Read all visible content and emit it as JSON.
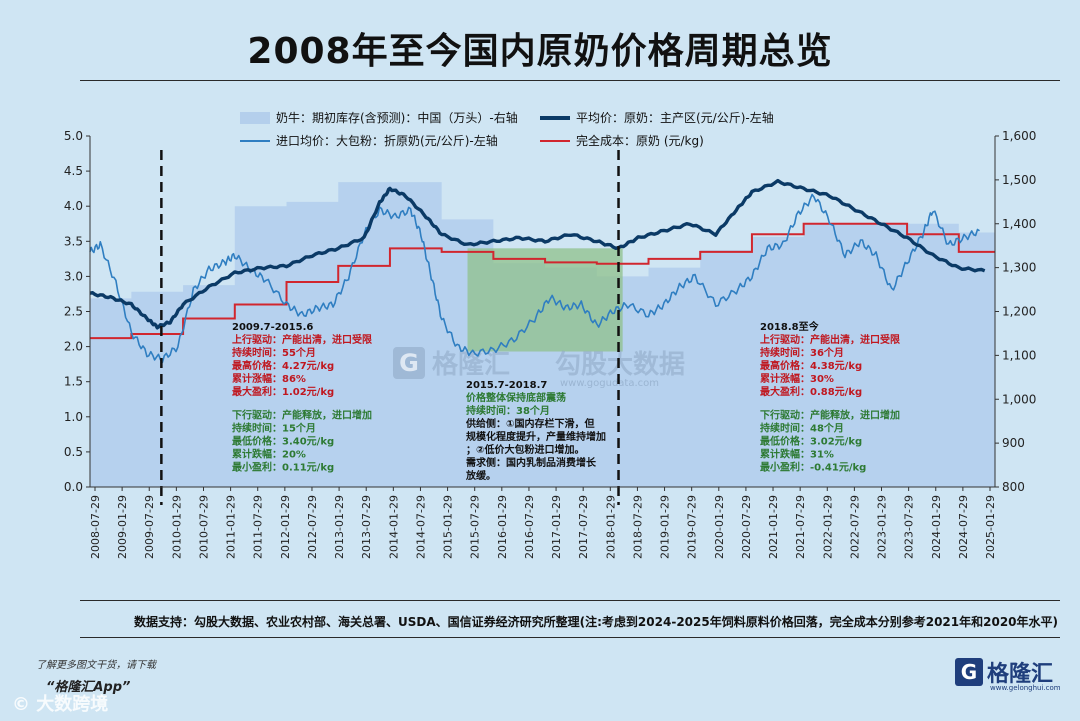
{
  "page": {
    "title": "2008年至今国内原奶价格周期总览",
    "source_note": "数据支持：勾股大数据、农业农村部、海关总署、USDA、国信证券经济研究所整理(注:考虑到2024-2025年饲料原料价格回落，完全成本分别参考2021年和2020年水平)",
    "footer_line1": "了解更多图文干货，请下载",
    "footer_line2": "“格隆汇App”",
    "footer_watermark": "© 大数跨境",
    "brand_logo": "G",
    "brand_name": "格隆汇",
    "brand_url": "www.gelonghui.com"
  },
  "chart_data": {
    "type": "line",
    "legend": {
      "position": "top",
      "items": [
        {
          "label": "奶牛：期初库存(含预测)：中国（万头）-右轴",
          "kind": "area",
          "color": "#b4cfec"
        },
        {
          "label": "平均价：原奶：主产区(元/公斤)-左轴",
          "kind": "line",
          "color": "#0b3a66"
        },
        {
          "label": "进口均价：大包粉：折原奶(元/公斤)-左轴",
          "kind": "line",
          "color": "#2f7ec1"
        },
        {
          "label": "完全成本：原奶 (元/kg)",
          "kind": "line",
          "color": "#d1262e"
        }
      ]
    },
    "y_left": {
      "min": 0,
      "max": 5,
      "ticks": [
        "0.0",
        "0.5",
        "1.0",
        "1.5",
        "2.0",
        "2.5",
        "3.0",
        "3.5",
        "4.0",
        "4.5",
        "5.0"
      ]
    },
    "y_right": {
      "min": 800,
      "max": 1600,
      "ticks": [
        "800",
        "900",
        "1,000",
        "1,100",
        "1,200",
        "1,300",
        "1,400",
        "1,500",
        "1,600"
      ]
    },
    "x_ticks": [
      "2008-07-29",
      "2009-01-29",
      "2009-07-29",
      "2010-01-29",
      "2010-07-29",
      "2011-01-29",
      "2011-07-29",
      "2012-01-29",
      "2012-07-29",
      "2013-01-29",
      "2013-07-29",
      "2014-01-29",
      "2014-07-29",
      "2015-01-29",
      "2015-07-29",
      "2016-01-29",
      "2016-07-29",
      "2017-01-29",
      "2017-07-29",
      "2018-01-29",
      "2018-07-29",
      "2019-01-29",
      "2019-07-29",
      "2020-01-29",
      "2020-07-29",
      "2021-01-29",
      "2021-07-29",
      "2022-01-29",
      "2022-07-29",
      "2023-01-29",
      "2023-07-29",
      "2024-01-29",
      "2024-07-29",
      "2025-01-29"
    ],
    "x_range": [
      2008.2,
      2025.7
    ],
    "dashed_lines": [
      2009.58,
      2018.42
    ],
    "highlight_range": [
      2015.5,
      2018.5
    ],
    "inventory_series": {
      "name": "奶牛：期初库存(含预测)：中国（万头）",
      "axis": "right",
      "segments": [
        [
          2008.2,
          2009.0,
          1230
        ],
        [
          2009.0,
          2010.0,
          1245
        ],
        [
          2010.0,
          2011.0,
          1260
        ],
        [
          2011.0,
          2012.0,
          1440
        ],
        [
          2012.0,
          2013.0,
          1450
        ],
        [
          2013.0,
          2014.0,
          1495
        ],
        [
          2014.0,
          2015.0,
          1495
        ],
        [
          2015.0,
          2016.0,
          1410
        ],
        [
          2016.0,
          2017.0,
          1310
        ],
        [
          2017.0,
          2018.0,
          1300
        ],
        [
          2018.0,
          2019.0,
          1280
        ],
        [
          2019.0,
          2020.0,
          1300
        ],
        [
          2020.0,
          2021.0,
          1340
        ],
        [
          2021.0,
          2022.0,
          1370
        ],
        [
          2022.0,
          2023.0,
          1400
        ],
        [
          2023.0,
          2024.0,
          1400
        ],
        [
          2024.0,
          2025.0,
          1400
        ],
        [
          2025.0,
          2025.7,
          1380
        ]
      ]
    },
    "avg_price_series": {
      "name": "平均价：原奶：主产区(元/公斤)",
      "axis": "left",
      "points": [
        [
          2008.2,
          2.76
        ],
        [
          2008.6,
          2.7
        ],
        [
          2009.0,
          2.6
        ],
        [
          2009.3,
          2.4
        ],
        [
          2009.5,
          2.28
        ],
        [
          2009.75,
          2.35
        ],
        [
          2010.0,
          2.6
        ],
        [
          2010.5,
          2.85
        ],
        [
          2011.0,
          3.05
        ],
        [
          2011.5,
          3.12
        ],
        [
          2012.0,
          3.15
        ],
        [
          2012.5,
          3.3
        ],
        [
          2013.0,
          3.4
        ],
        [
          2013.5,
          3.55
        ],
        [
          2013.8,
          4.05
        ],
        [
          2014.0,
          4.25
        ],
        [
          2014.3,
          4.15
        ],
        [
          2014.7,
          3.85
        ],
        [
          2015.0,
          3.6
        ],
        [
          2015.5,
          3.45
        ],
        [
          2016.0,
          3.5
        ],
        [
          2016.5,
          3.55
        ],
        [
          2017.0,
          3.5
        ],
        [
          2017.5,
          3.6
        ],
        [
          2018.0,
          3.5
        ],
        [
          2018.42,
          3.4
        ],
        [
          2018.8,
          3.55
        ],
        [
          2019.3,
          3.65
        ],
        [
          2019.8,
          3.75
        ],
        [
          2020.3,
          3.6
        ],
        [
          2020.7,
          3.95
        ],
        [
          2021.0,
          4.2
        ],
        [
          2021.5,
          4.35
        ],
        [
          2022.0,
          4.25
        ],
        [
          2022.5,
          4.15
        ],
        [
          2023.0,
          3.95
        ],
        [
          2023.5,
          3.75
        ],
        [
          2024.0,
          3.55
        ],
        [
          2024.5,
          3.3
        ],
        [
          2025.0,
          3.12
        ],
        [
          2025.5,
          3.08
        ]
      ]
    },
    "import_price_series": {
      "name": "进口均价：大包粉：折原奶(元/公斤)",
      "axis": "left",
      "points": [
        [
          2008.2,
          3.35
        ],
        [
          2008.4,
          3.45
        ],
        [
          2008.7,
          2.9
        ],
        [
          2009.0,
          2.2
        ],
        [
          2009.3,
          1.9
        ],
        [
          2009.6,
          1.82
        ],
        [
          2009.9,
          2.0
        ],
        [
          2010.2,
          2.8
        ],
        [
          2010.5,
          3.1
        ],
        [
          2010.8,
          3.2
        ],
        [
          2011.0,
          3.3
        ],
        [
          2011.3,
          3.1
        ],
        [
          2011.6,
          2.95
        ],
        [
          2012.0,
          2.6
        ],
        [
          2012.3,
          2.45
        ],
        [
          2012.6,
          2.55
        ],
        [
          2012.9,
          2.6
        ],
        [
          2013.2,
          3.0
        ],
        [
          2013.5,
          3.6
        ],
        [
          2013.8,
          3.95
        ],
        [
          2014.1,
          3.85
        ],
        [
          2014.4,
          3.95
        ],
        [
          2014.6,
          3.6
        ],
        [
          2014.8,
          3.0
        ],
        [
          2015.0,
          2.4
        ],
        [
          2015.3,
          2.0
        ],
        [
          2015.6,
          1.9
        ],
        [
          2016.0,
          1.95
        ],
        [
          2016.4,
          2.1
        ],
        [
          2016.8,
          2.4
        ],
        [
          2017.1,
          2.7
        ],
        [
          2017.4,
          2.55
        ],
        [
          2017.7,
          2.6
        ],
        [
          2018.0,
          2.3
        ],
        [
          2018.3,
          2.5
        ],
        [
          2018.6,
          2.6
        ],
        [
          2019.0,
          2.45
        ],
        [
          2019.3,
          2.6
        ],
        [
          2019.6,
          2.85
        ],
        [
          2019.9,
          3.0
        ],
        [
          2020.3,
          2.6
        ],
        [
          2020.7,
          2.8
        ],
        [
          2021.0,
          3.0
        ],
        [
          2021.3,
          3.4
        ],
        [
          2021.6,
          3.45
        ],
        [
          2021.9,
          3.9
        ],
        [
          2022.2,
          4.15
        ],
        [
          2022.5,
          3.8
        ],
        [
          2022.8,
          3.3
        ],
        [
          2023.1,
          3.5
        ],
        [
          2023.4,
          3.3
        ],
        [
          2023.7,
          2.8
        ],
        [
          2024.0,
          3.2
        ],
        [
          2024.3,
          3.6
        ],
        [
          2024.5,
          3.95
        ],
        [
          2024.8,
          3.45
        ],
        [
          2025.1,
          3.55
        ],
        [
          2025.4,
          3.65
        ]
      ]
    },
    "cost_series": {
      "name": "完全成本：原奶 (元/kg)",
      "axis": "left",
      "steps": [
        [
          2008.2,
          2.12
        ],
        [
          2009.0,
          2.18
        ],
        [
          2010.0,
          2.4
        ],
        [
          2011.0,
          2.6
        ],
        [
          2012.0,
          2.92
        ],
        [
          2013.0,
          3.15
        ],
        [
          2014.0,
          3.4
        ],
        [
          2015.0,
          3.35
        ],
        [
          2016.0,
          3.25
        ],
        [
          2017.0,
          3.2
        ],
        [
          2018.0,
          3.18
        ],
        [
          2019.0,
          3.25
        ],
        [
          2020.0,
          3.35
        ],
        [
          2021.0,
          3.6
        ],
        [
          2022.0,
          3.75
        ],
        [
          2023.0,
          3.75
        ],
        [
          2024.0,
          3.6
        ],
        [
          2025.0,
          3.35
        ]
      ]
    },
    "annotations": [
      {
        "heading": "2009.7-2015.6",
        "red": [
          "上行驱动：产能出清，进口受限",
          "持续时间：55个月",
          "最高价格：4.27元/kg",
          "累计涨幅：86%",
          "最大盈利：1.02元/kg"
        ],
        "green": [
          "下行驱动：产能释放，进口增加",
          "持续时间：15个月",
          "最低价格：3.40元/kg",
          "累计跌幅：20%",
          "最小盈利：0.11元/kg"
        ]
      },
      {
        "heading": "2015.7-2018.7",
        "green": [
          "价格整体保持底部震荡",
          "持续时间：38个月"
        ],
        "black": [
          "供给侧：①国内存栏下滑，但",
          "规模化程度提升，产量维持增加",
          "；②低价大包粉进口增加。",
          "需求侧：国内乳制品消费增长",
          "放缓。"
        ]
      },
      {
        "heading": "2018.8至今",
        "red": [
          "上行驱动：产能出清，进口受限",
          "持续时间：36个月",
          "最高价格：4.38元/kg",
          "累计涨幅：30%",
          "最大盈利：0.88元/kg"
        ],
        "green": [
          "下行驱动：产能释放，进口增加",
          "持续时间：48个月",
          "最低价格：3.02元/kg",
          "累计跌幅：31%",
          "最小盈利：-0.41元/kg"
        ]
      }
    ],
    "watermark": {
      "logo": "G",
      "brand": "格隆汇",
      "mid": "勾股大数据",
      "url": "www.gogudata.com"
    }
  }
}
